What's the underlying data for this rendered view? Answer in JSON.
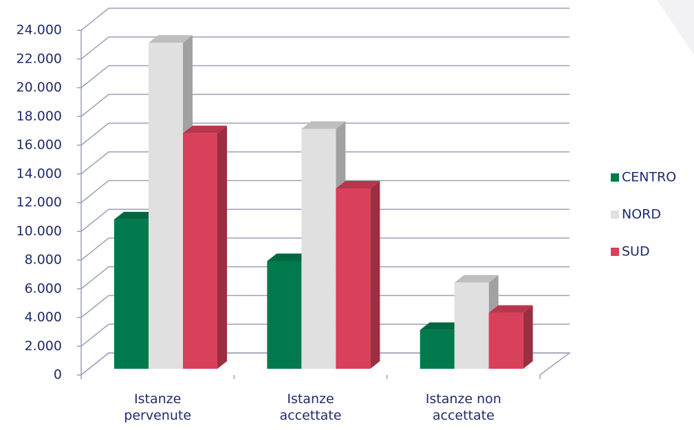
{
  "chart_data": {
    "type": "bar3d",
    "categories": [
      "Istanze pervenute",
      "Istanze accettate",
      "Istanze non accettate"
    ],
    "series": [
      {
        "name": "CENTRO",
        "color": "#007a4d",
        "values": [
          10400,
          7500,
          2700
        ]
      },
      {
        "name": "NORD",
        "color": "#e0e0e0",
        "values": [
          22700,
          16700,
          6000
        ]
      },
      {
        "name": "SUD",
        "color": "#d9405a",
        "values": [
          16400,
          12550,
          3900
        ]
      }
    ],
    "ylim": [
      0,
      24000
    ],
    "yticks": [
      0,
      {
        "value": 2000,
        "label": "2.000"
      },
      {
        "value": 4000,
        "label": "4.000"
      },
      {
        "value": 6000,
        "label": "6.000"
      },
      {
        "value": 8000,
        "label": "8.000"
      },
      {
        "value": 10000,
        "label": "10.000"
      },
      {
        "value": 12000,
        "label": "12.000"
      },
      {
        "value": 14000,
        "label": "14.000"
      },
      {
        "value": 16000,
        "label": "16.000"
      },
      {
        "value": 18000,
        "label": "18.000"
      },
      {
        "value": 20000,
        "label": "20.000"
      },
      {
        "value": 22000,
        "label": "22.000"
      },
      {
        "value": 24000,
        "label": "24.000"
      }
    ],
    "grid": true
  }
}
